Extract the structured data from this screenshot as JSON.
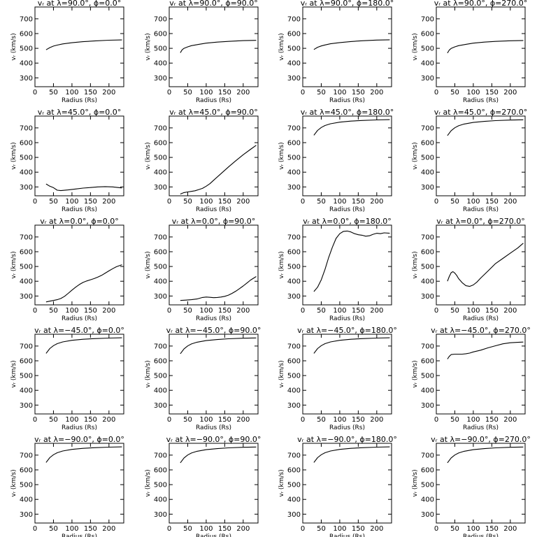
{
  "figure": {
    "background": "#ffffff",
    "ink": "#000000"
  },
  "chart_data": [
    {
      "type": "line",
      "title": "vᵣ at λ=90.0°, ϕ=0.0°",
      "xlabel": "Radius (Rs)",
      "ylabel": "vᵣ (km/s)",
      "xlim": [
        0,
        240
      ],
      "ylim": [
        240,
        780
      ],
      "xticks": [
        0,
        50,
        100,
        150,
        200
      ],
      "yticks": [
        300,
        400,
        500,
        600,
        700
      ],
      "series": [
        {
          "x": [
            30,
            40,
            50,
            60,
            75,
            100,
            130,
            160,
            200,
            235
          ],
          "y": [
            490,
            505,
            515,
            522,
            530,
            538,
            545,
            550,
            555,
            557
          ]
        }
      ]
    },
    {
      "type": "line",
      "title": "vᵣ at λ=90.0°, ϕ=90.0°",
      "xlabel": "Radius (Rs)",
      "ylabel": "vᵣ (km/s)",
      "xlim": [
        0,
        240
      ],
      "ylim": [
        240,
        780
      ],
      "xticks": [
        0,
        50,
        100,
        150,
        200
      ],
      "yticks": [
        300,
        400,
        500,
        600,
        700
      ],
      "series": [
        {
          "x": [
            30,
            35,
            40,
            50,
            60,
            80,
            100,
            130,
            160,
            200,
            235
          ],
          "y": [
            470,
            490,
            500,
            510,
            518,
            527,
            535,
            542,
            547,
            552,
            554
          ]
        }
      ]
    },
    {
      "type": "line",
      "title": "vᵣ at λ=90.0°, ϕ=180.0°",
      "xlabel": "Radius (Rs)",
      "ylabel": "vᵣ (km/s)",
      "xlim": [
        0,
        240
      ],
      "ylim": [
        240,
        780
      ],
      "xticks": [
        0,
        50,
        100,
        150,
        200
      ],
      "yticks": [
        300,
        400,
        500,
        600,
        700
      ],
      "series": [
        {
          "x": [
            30,
            40,
            50,
            60,
            75,
            100,
            130,
            160,
            200,
            235
          ],
          "y": [
            492,
            507,
            516,
            523,
            531,
            539,
            546,
            551,
            556,
            558
          ]
        }
      ]
    },
    {
      "type": "line",
      "title": "vᵣ at λ=90.0°, ϕ=270.0°",
      "xlabel": "Radius (Rs)",
      "ylabel": "vᵣ (km/s)",
      "xlim": [
        0,
        240
      ],
      "ylim": [
        240,
        780
      ],
      "xticks": [
        0,
        50,
        100,
        150,
        200
      ],
      "yticks": [
        300,
        400,
        500,
        600,
        700
      ],
      "series": [
        {
          "x": [
            30,
            35,
            40,
            50,
            60,
            80,
            100,
            130,
            160,
            200,
            235
          ],
          "y": [
            468,
            488,
            499,
            510,
            518,
            527,
            535,
            542,
            547,
            551,
            553
          ]
        }
      ]
    },
    {
      "type": "line",
      "title": "vᵣ at λ=45.0°, ϕ=0.0°",
      "xlabel": "Radius (Rs)",
      "ylabel": "vᵣ (km/s)",
      "xlim": [
        0,
        240
      ],
      "ylim": [
        240,
        780
      ],
      "xticks": [
        0,
        50,
        100,
        150,
        200
      ],
      "yticks": [
        300,
        400,
        500,
        600,
        700
      ],
      "series": [
        {
          "x": [
            30,
            40,
            50,
            60,
            70,
            90,
            110,
            130,
            150,
            170,
            190,
            210,
            235
          ],
          "y": [
            320,
            305,
            295,
            278,
            275,
            280,
            286,
            292,
            296,
            300,
            302,
            300,
            293
          ]
        }
      ]
    },
    {
      "type": "line",
      "title": "vᵣ at λ=45.0°, ϕ=90.0°",
      "xlabel": "Radius (Rs)",
      "ylabel": "vᵣ (km/s)",
      "xlim": [
        0,
        240
      ],
      "ylim": [
        240,
        780
      ],
      "xticks": [
        0,
        50,
        100,
        150,
        200
      ],
      "yticks": [
        300,
        400,
        500,
        600,
        700
      ],
      "series": [
        {
          "x": [
            30,
            40,
            50,
            60,
            70,
            80,
            90,
            100,
            110,
            120,
            140,
            160,
            180,
            200,
            220,
            235
          ],
          "y": [
            252,
            262,
            266,
            270,
            274,
            282,
            290,
            305,
            322,
            345,
            390,
            435,
            478,
            518,
            555,
            582
          ]
        }
      ]
    },
    {
      "type": "line",
      "title": "vᵣ at λ=45.0°, ϕ=180.0°",
      "xlabel": "Radius (Rs)",
      "ylabel": "vᵣ (km/s)",
      "xlim": [
        0,
        240
      ],
      "ylim": [
        240,
        780
      ],
      "xticks": [
        0,
        50,
        100,
        150,
        200
      ],
      "yticks": [
        300,
        400,
        500,
        600,
        700
      ],
      "series": [
        {
          "x": [
            30,
            40,
            50,
            60,
            75,
            100,
            130,
            160,
            200,
            235
          ],
          "y": [
            650,
            683,
            703,
            716,
            728,
            739,
            746,
            750,
            754,
            756
          ]
        }
      ]
    },
    {
      "type": "line",
      "title": "vᵣ at λ=45.0°, ϕ=270.0°",
      "xlabel": "Radius (Rs)",
      "ylabel": "vᵣ (km/s)",
      "xlim": [
        0,
        240
      ],
      "ylim": [
        240,
        780
      ],
      "xticks": [
        0,
        50,
        100,
        150,
        200
      ],
      "yticks": [
        300,
        400,
        500,
        600,
        700
      ],
      "series": [
        {
          "x": [
            30,
            40,
            50,
            60,
            75,
            100,
            130,
            160,
            200,
            235
          ],
          "y": [
            648,
            681,
            701,
            714,
            726,
            737,
            744,
            749,
            753,
            755
          ]
        }
      ]
    },
    {
      "type": "line",
      "title": "vᵣ at λ=0.0°, ϕ=0.0°",
      "xlabel": "Radius (Rs)",
      "ylabel": "vᵣ (km/s)",
      "xlim": [
        0,
        240
      ],
      "ylim": [
        240,
        780
      ],
      "xticks": [
        0,
        50,
        100,
        150,
        200
      ],
      "yticks": [
        300,
        400,
        500,
        600,
        700
      ],
      "series": [
        {
          "x": [
            30,
            40,
            50,
            60,
            70,
            80,
            90,
            100,
            110,
            120,
            130,
            140,
            150,
            160,
            170,
            180,
            190,
            200,
            210,
            220,
            235
          ],
          "y": [
            260,
            265,
            270,
            275,
            283,
            298,
            318,
            340,
            360,
            378,
            392,
            402,
            410,
            418,
            428,
            440,
            455,
            470,
            485,
            498,
            512
          ]
        }
      ]
    },
    {
      "type": "line",
      "title": "vᵣ at λ=0.0°, ϕ=90.0°",
      "xlabel": "Radius (Rs)",
      "ylabel": "vᵣ (km/s)",
      "xlim": [
        0,
        240
      ],
      "ylim": [
        240,
        780
      ],
      "xticks": [
        0,
        50,
        100,
        150,
        200
      ],
      "yticks": [
        300,
        400,
        500,
        600,
        700
      ],
      "series": [
        {
          "x": [
            30,
            45,
            60,
            75,
            90,
            100,
            110,
            120,
            130,
            140,
            150,
            160,
            170,
            180,
            190,
            200,
            210,
            220,
            235
          ],
          "y": [
            270,
            272,
            275,
            280,
            290,
            293,
            291,
            289,
            290,
            293,
            298,
            306,
            318,
            333,
            350,
            368,
            388,
            408,
            432
          ]
        }
      ]
    },
    {
      "type": "line",
      "title": "vᵣ at λ=0.0°, ϕ=180.0°",
      "xlabel": "Radius (Rs)",
      "ylabel": "vᵣ (km/s)",
      "xlim": [
        0,
        240
      ],
      "ylim": [
        240,
        780
      ],
      "xticks": [
        0,
        50,
        100,
        150,
        200
      ],
      "yticks": [
        300,
        400,
        500,
        600,
        700
      ],
      "series": [
        {
          "x": [
            30,
            40,
            50,
            60,
            70,
            80,
            90,
            100,
            110,
            120,
            130,
            140,
            150,
            160,
            170,
            180,
            190,
            200,
            210,
            220,
            235
          ],
          "y": [
            330,
            360,
            410,
            480,
            560,
            630,
            690,
            722,
            738,
            740,
            734,
            722,
            715,
            712,
            705,
            708,
            718,
            725,
            722,
            728,
            725
          ]
        }
      ]
    },
    {
      "type": "line",
      "title": "vᵣ at λ=0.0°, ϕ=270.0°",
      "xlabel": "Radius (Rs)",
      "ylabel": "vᵣ (km/s)",
      "xlim": [
        0,
        240
      ],
      "ylim": [
        240,
        780
      ],
      "xticks": [
        0,
        50,
        100,
        150,
        200
      ],
      "yticks": [
        300,
        400,
        500,
        600,
        700
      ],
      "series": [
        {
          "x": [
            30,
            35,
            40,
            45,
            50,
            55,
            60,
            70,
            80,
            90,
            100,
            110,
            120,
            140,
            160,
            180,
            200,
            220,
            235
          ],
          "y": [
            400,
            432,
            458,
            465,
            455,
            440,
            418,
            390,
            370,
            365,
            375,
            395,
            422,
            470,
            520,
            555,
            590,
            625,
            658
          ]
        }
      ]
    },
    {
      "type": "line",
      "title": "vᵣ at λ=−45.0°, ϕ=0.0°",
      "xlabel": "Radius (Rs)",
      "ylabel": "vᵣ (km/s)",
      "xlim": [
        0,
        240
      ],
      "ylim": [
        240,
        780
      ],
      "xticks": [
        0,
        50,
        100,
        150,
        200
      ],
      "yticks": [
        300,
        400,
        500,
        600,
        700
      ],
      "series": [
        {
          "x": [
            30,
            40,
            50,
            60,
            75,
            100,
            130,
            160,
            200,
            235
          ],
          "y": [
            650,
            683,
            703,
            716,
            728,
            739,
            746,
            750,
            754,
            756
          ]
        }
      ]
    },
    {
      "type": "line",
      "title": "vᵣ at λ=−45.0°, ϕ=90.0°",
      "xlabel": "Radius (Rs)",
      "ylabel": "vᵣ (km/s)",
      "xlim": [
        0,
        240
      ],
      "ylim": [
        240,
        780
      ],
      "xticks": [
        0,
        50,
        100,
        150,
        200
      ],
      "yticks": [
        300,
        400,
        500,
        600,
        700
      ],
      "series": [
        {
          "x": [
            30,
            40,
            50,
            60,
            75,
            100,
            130,
            160,
            200,
            235
          ],
          "y": [
            648,
            681,
            701,
            714,
            726,
            737,
            744,
            749,
            753,
            755
          ]
        }
      ]
    },
    {
      "type": "line",
      "title": "vᵣ at λ=−45.0°, ϕ=180.0°",
      "xlabel": "Radius (Rs)",
      "ylabel": "vᵣ (km/s)",
      "xlim": [
        0,
        240
      ],
      "ylim": [
        240,
        780
      ],
      "xticks": [
        0,
        50,
        100,
        150,
        200
      ],
      "yticks": [
        300,
        400,
        500,
        600,
        700
      ],
      "series": [
        {
          "x": [
            30,
            40,
            50,
            60,
            75,
            100,
            130,
            160,
            200,
            235
          ],
          "y": [
            650,
            683,
            703,
            716,
            728,
            739,
            746,
            750,
            754,
            756
          ]
        }
      ]
    },
    {
      "type": "line",
      "title": "vᵣ at λ=−45.0°, ϕ=270.0°",
      "xlabel": "Radius (Rs)",
      "ylabel": "vᵣ (km/s)",
      "xlim": [
        0,
        240
      ],
      "ylim": [
        240,
        780
      ],
      "xticks": [
        0,
        50,
        100,
        150,
        200
      ],
      "yticks": [
        300,
        400,
        500,
        600,
        700
      ],
      "series": [
        {
          "x": [
            30,
            35,
            40,
            50,
            60,
            70,
            80,
            90,
            100,
            120,
            140,
            160,
            180,
            200,
            220,
            235
          ],
          "y": [
            612,
            630,
            642,
            645,
            645,
            645,
            648,
            652,
            660,
            672,
            688,
            702,
            715,
            722,
            725,
            727
          ]
        }
      ]
    },
    {
      "type": "line",
      "title": "vᵣ at λ=−90.0°, ϕ=0.0°",
      "xlabel": "Radius (Rs)",
      "ylabel": "vᵣ (km/s)",
      "xlim": [
        0,
        240
      ],
      "ylim": [
        240,
        780
      ],
      "xticks": [
        0,
        50,
        100,
        150,
        200
      ],
      "yticks": [
        300,
        400,
        500,
        600,
        700
      ],
      "series": [
        {
          "x": [
            30,
            40,
            50,
            60,
            75,
            100,
            130,
            160,
            200,
            235
          ],
          "y": [
            650,
            683,
            703,
            716,
            728,
            739,
            746,
            750,
            754,
            756
          ]
        }
      ]
    },
    {
      "type": "line",
      "title": "vᵣ at λ=−90.0°, ϕ=90.0°",
      "xlabel": "Radius (Rs)",
      "ylabel": "vᵣ (km/s)",
      "xlim": [
        0,
        240
      ],
      "ylim": [
        240,
        780
      ],
      "xticks": [
        0,
        50,
        100,
        150,
        200
      ],
      "yticks": [
        300,
        400,
        500,
        600,
        700
      ],
      "series": [
        {
          "x": [
            30,
            40,
            50,
            60,
            75,
            100,
            130,
            160,
            200,
            235
          ],
          "y": [
            648,
            681,
            701,
            714,
            726,
            737,
            744,
            749,
            753,
            755
          ]
        }
      ]
    },
    {
      "type": "line",
      "title": "vᵣ at λ=−90.0°, ϕ=180.0°",
      "xlabel": "Radius (Rs)",
      "ylabel": "vᵣ (km/s)",
      "xlim": [
        0,
        240
      ],
      "ylim": [
        240,
        780
      ],
      "xticks": [
        0,
        50,
        100,
        150,
        200
      ],
      "yticks": [
        300,
        400,
        500,
        600,
        700
      ],
      "series": [
        {
          "x": [
            30,
            40,
            50,
            60,
            75,
            100,
            130,
            160,
            200,
            235
          ],
          "y": [
            650,
            683,
            703,
            716,
            728,
            739,
            746,
            750,
            754,
            756
          ]
        }
      ]
    },
    {
      "type": "line",
      "title": "vᵣ at λ=−90.0°, ϕ=270.0°",
      "xlabel": "Radius (Rs)",
      "ylabel": "vᵣ (km/s)",
      "xlim": [
        0,
        240
      ],
      "ylim": [
        240,
        780
      ],
      "xticks": [
        0,
        50,
        100,
        150,
        200
      ],
      "yticks": [
        300,
        400,
        500,
        600,
        700
      ],
      "series": [
        {
          "x": [
            30,
            40,
            50,
            60,
            75,
            100,
            130,
            160,
            200,
            235
          ],
          "y": [
            648,
            681,
            701,
            714,
            726,
            737,
            744,
            749,
            753,
            755
          ]
        }
      ]
    }
  ]
}
